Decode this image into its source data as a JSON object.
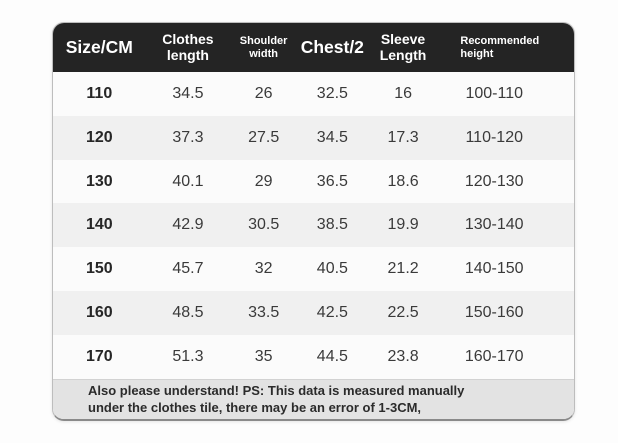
{
  "chart_data": {
    "type": "table",
    "title": "",
    "columns": [
      "Size/CM",
      "Clothes length",
      "Shoulder width",
      "Chest/2",
      "Sleeve Length",
      "Recommended height"
    ],
    "rows": [
      [
        "110",
        "34.5",
        "26",
        "32.5",
        "16",
        "100-110"
      ],
      [
        "120",
        "37.3",
        "27.5",
        "34.5",
        "17.3",
        "110-120"
      ],
      [
        "130",
        "40.1",
        "29",
        "36.5",
        "18.6",
        "120-130"
      ],
      [
        "140",
        "42.9",
        "30.5",
        "38.5",
        "19.9",
        "130-140"
      ],
      [
        "150",
        "45.7",
        "32",
        "40.5",
        "21.2",
        "140-150"
      ],
      [
        "160",
        "48.5",
        "33.5",
        "42.5",
        "22.5",
        "150-160"
      ],
      [
        "170",
        "51.3",
        "35",
        "44.5",
        "23.8",
        "160-170"
      ]
    ],
    "footnote": "Also please understand! PS: This data is measured manually under the clothes tile, there may be an error of 1-3CM,"
  },
  "footer": {
    "line1": "Also please understand! PS: This data is measured manually",
    "line2": "under the clothes tile, there may be an error of 1-3CM,"
  },
  "colors": {
    "header_bg": "#242424",
    "header_text": "#ffffff",
    "row_bg": "#fbfbfb",
    "row_alt_bg": "#f0f0f0",
    "footer_bg": "#e3e3e3",
    "data_text": "#3a3a3a",
    "page_bg": "#fdfdfd"
  }
}
